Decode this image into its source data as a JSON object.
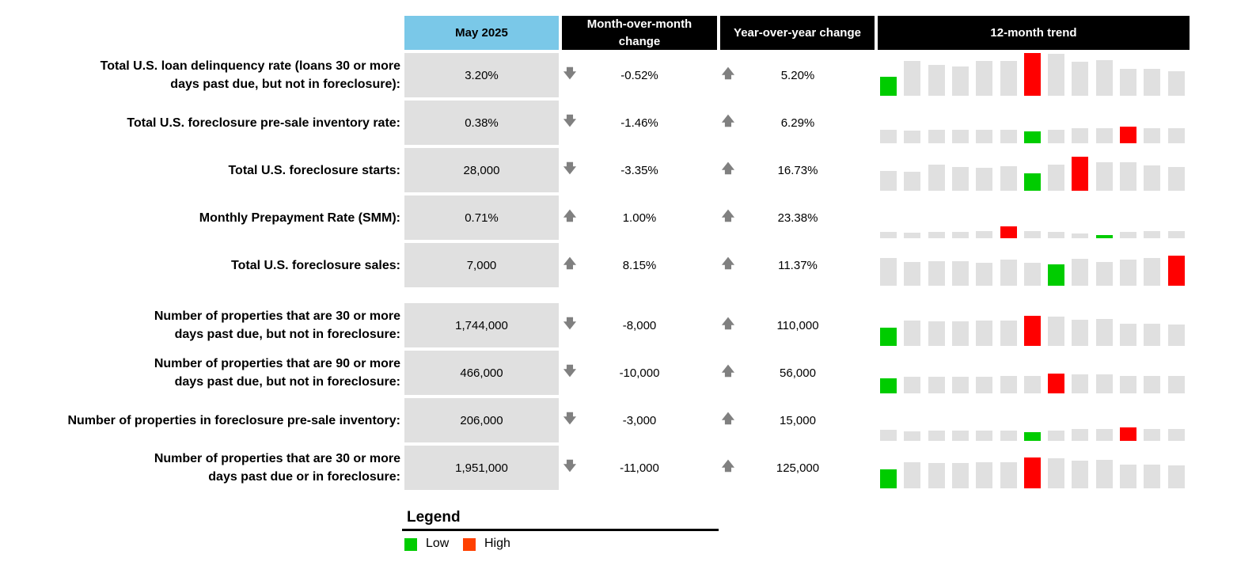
{
  "header": {
    "columns": [
      "May 2025",
      "Month-over-month change",
      "Year-over-year change",
      "12-month trend"
    ]
  },
  "rows": [
    {
      "label": [
        "Total U.S. loan delinquency rate (loans 30 or more",
        "days past due, but not in foreclosure):"
      ],
      "value": "3.20%",
      "mom": "-0.52%",
      "yoy": "5.20%",
      "trend": [
        24,
        44,
        39,
        37,
        44,
        44,
        54,
        53,
        43,
        45,
        34,
        34,
        31
      ]
    },
    {
      "label": [
        "Total U.S. foreclosure pre-sale inventory rate:"
      ],
      "value": "0.38%",
      "mom": "-1.46%",
      "yoy": "6.29%",
      "trend": [
        17,
        16,
        17,
        17,
        17,
        17,
        15,
        17,
        19,
        19,
        21,
        19,
        19
      ]
    },
    {
      "label": [
        "Total U.S. foreclosure starts:"
      ],
      "value": "28,000",
      "mom": "-3.35%",
      "yoy": "16.73%",
      "trend": [
        25,
        24,
        33,
        30,
        29,
        31,
        22,
        33,
        43,
        36,
        36,
        32,
        30
      ]
    },
    {
      "label": [
        "Monthly Prepayment Rate (SMM):"
      ],
      "value": "0.71%",
      "mom": "1.00%",
      "yoy": "23.38%",
      "trend": [
        8,
        7,
        8,
        8,
        9,
        15,
        9,
        8,
        6,
        4,
        8,
        9,
        9
      ]
    },
    {
      "label": [
        "Total U.S. foreclosure sales:"
      ],
      "value": "7,000",
      "mom": "8.15%",
      "yoy": "11.37%",
      "trend": [
        35,
        30,
        31,
        31,
        29,
        33,
        29,
        27,
        34,
        30,
        33,
        35,
        38
      ]
    },
    {
      "label": [
        "Number of properties that are 30 or more",
        "days past due, but not in foreclosure:"
      ],
      "value": "1,744,000",
      "mom": "-8,000",
      "yoy": "110,000",
      "trend": [
        23,
        32,
        31,
        31,
        32,
        32,
        38,
        37,
        33,
        34,
        28,
        28,
        27
      ]
    },
    {
      "label": [
        "Number of properties that are 90 or more",
        "days past due, but not in foreclosure:"
      ],
      "value": "466,000",
      "mom": "-10,000",
      "yoy": "56,000",
      "trend": [
        19,
        21,
        21,
        21,
        21,
        22,
        22,
        25,
        24,
        24,
        22,
        22,
        22
      ]
    },
    {
      "label": [
        "Number of properties in foreclosure pre-sale inventory:"
      ],
      "value": "206,000",
      "mom": "-3,000",
      "yoy": "15,000",
      "trend": [
        14,
        12,
        13,
        13,
        13,
        13,
        11,
        13,
        15,
        15,
        17,
        15,
        15
      ]
    },
    {
      "label": [
        "Number of properties that are 30 or more",
        "days past due or in foreclosure:"
      ],
      "value": "1,951,000",
      "mom": "-11,000",
      "yoy": "125,000",
      "trend": [
        24,
        33,
        32,
        32,
        33,
        33,
        39,
        38,
        35,
        36,
        30,
        30,
        29
      ]
    }
  ],
  "trend_colors": {
    "low": "#00cc00",
    "high": "#ff0000",
    "other": "#e0e0e0"
  },
  "legend": {
    "title": "Legend",
    "items": [
      {
        "label": "Low",
        "color": "#00cc00"
      },
      {
        "label": "High",
        "color": "#ff4000"
      }
    ]
  }
}
